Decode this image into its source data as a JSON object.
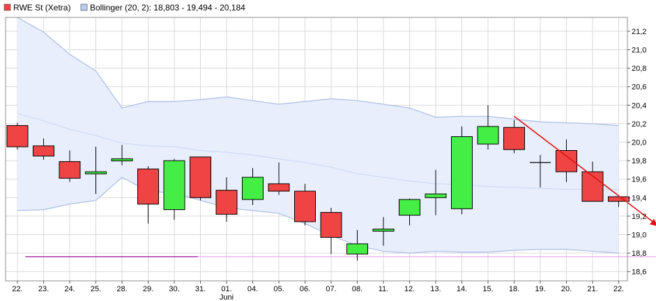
{
  "chart_data": {
    "type": "candlestick",
    "legend": [
      {
        "label": "RWE St (Xetra)",
        "swatch": "#ef4444"
      },
      {
        "label": "Bollinger (20, 2): 18,803 - 19,494 - 20,184",
        "swatch": "#b8cdf0"
      }
    ],
    "x_ticks": [
      "22.",
      "23.",
      "24.",
      "25.",
      "28.",
      "29.",
      "30.",
      "31.",
      "01.",
      "04.",
      "05.",
      "06.",
      "07.",
      "08.",
      "11.",
      "12.",
      "13.",
      "14.",
      "15.",
      "18.",
      "19.",
      "20.",
      "21.",
      "22."
    ],
    "month_label": {
      "text": "Juni",
      "at_index": 8
    },
    "y_ticks": [
      "18,6",
      "18,8",
      "19,0",
      "19,2",
      "19,4",
      "19,6",
      "19,8",
      "20,0",
      "20,2",
      "20,4",
      "20,6",
      "20,8",
      "21,0",
      "21,2"
    ],
    "y_tick_values": [
      18.6,
      18.8,
      19.0,
      19.2,
      19.4,
      19.6,
      19.8,
      20.0,
      20.2,
      20.4,
      20.6,
      20.8,
      21.0,
      21.2
    ],
    "ylim": [
      18.5,
      21.35
    ],
    "grid": true,
    "legend_placement": "top-left",
    "candles": [
      {
        "open": 20.18,
        "high": 20.21,
        "low": 19.92,
        "close": 19.95,
        "dir": "down"
      },
      {
        "open": 19.96,
        "high": 20.04,
        "low": 19.81,
        "close": 19.85,
        "dir": "down"
      },
      {
        "open": 19.79,
        "high": 19.91,
        "low": 19.57,
        "close": 19.61,
        "dir": "down"
      },
      {
        "open": 19.66,
        "high": 19.95,
        "low": 19.44,
        "close": 19.68,
        "dir": "up"
      },
      {
        "open": 19.8,
        "high": 19.97,
        "low": 19.75,
        "close": 19.82,
        "dir": "up"
      },
      {
        "open": 19.71,
        "high": 19.74,
        "low": 19.12,
        "close": 19.33,
        "dir": "down"
      },
      {
        "open": 19.27,
        "high": 19.82,
        "low": 19.16,
        "close": 19.8,
        "dir": "up"
      },
      {
        "open": 19.84,
        "high": 19.84,
        "low": 19.37,
        "close": 19.4,
        "dir": "down"
      },
      {
        "open": 19.48,
        "high": 19.62,
        "low": 19.14,
        "close": 19.22,
        "dir": "down"
      },
      {
        "open": 19.38,
        "high": 19.72,
        "low": 19.32,
        "close": 19.62,
        "dir": "up"
      },
      {
        "open": 19.55,
        "high": 19.78,
        "low": 19.43,
        "close": 19.47,
        "dir": "down"
      },
      {
        "open": 19.47,
        "high": 19.55,
        "low": 19.1,
        "close": 19.14,
        "dir": "down"
      },
      {
        "open": 19.24,
        "high": 19.29,
        "low": 18.79,
        "close": 18.97,
        "dir": "down"
      },
      {
        "open": 18.79,
        "high": 19.05,
        "low": 18.72,
        "close": 18.9,
        "dir": "up"
      },
      {
        "open": 19.04,
        "high": 19.19,
        "low": 18.88,
        "close": 19.06,
        "dir": "up"
      },
      {
        "open": 19.21,
        "high": 19.39,
        "low": 19.1,
        "close": 19.38,
        "dir": "up"
      },
      {
        "open": 19.4,
        "high": 19.7,
        "low": 19.21,
        "close": 19.44,
        "dir": "up"
      },
      {
        "open": 19.28,
        "high": 20.17,
        "low": 19.22,
        "close": 20.06,
        "dir": "up"
      },
      {
        "open": 19.98,
        "high": 20.4,
        "low": 19.92,
        "close": 20.17,
        "dir": "up"
      },
      {
        "open": 20.16,
        "high": 20.24,
        "low": 19.88,
        "close": 19.92,
        "dir": "down"
      },
      {
        "open": 19.78,
        "high": 19.86,
        "low": 19.51,
        "close": 19.78,
        "dir": "flat"
      },
      {
        "open": 19.91,
        "high": 20.03,
        "low": 19.57,
        "close": 19.68,
        "dir": "down"
      },
      {
        "open": 19.68,
        "high": 19.79,
        "low": 19.36,
        "close": 19.36,
        "dir": "down"
      },
      {
        "open": 19.41,
        "high": 19.41,
        "low": 19.3,
        "close": 19.36,
        "dir": "down"
      }
    ],
    "bollinger": {
      "upper": [
        21.35,
        21.19,
        20.95,
        20.77,
        20.37,
        20.44,
        20.44,
        20.46,
        20.49,
        20.45,
        20.41,
        20.44,
        20.47,
        20.45,
        20.41,
        20.37,
        20.27,
        20.28,
        20.28,
        20.25,
        20.22,
        20.21,
        20.2,
        20.18
      ],
      "middle": [
        20.31,
        20.23,
        20.14,
        20.07,
        19.99,
        19.96,
        19.95,
        19.91,
        19.89,
        19.86,
        19.82,
        19.78,
        19.73,
        19.66,
        19.62,
        19.58,
        19.55,
        19.54,
        19.52,
        19.51,
        19.5,
        19.49,
        19.49,
        19.49
      ],
      "lower": [
        19.26,
        19.27,
        19.33,
        19.37,
        19.62,
        19.47,
        19.45,
        19.37,
        19.29,
        19.26,
        19.23,
        19.12,
        18.99,
        18.88,
        18.82,
        18.8,
        18.82,
        18.81,
        18.81,
        18.83,
        18.84,
        18.84,
        18.82,
        18.8
      ]
    },
    "trend_arrow": {
      "from": {
        "index": 19,
        "value": 20.28
      },
      "to": {
        "index": 24.5,
        "value": 19.09
      },
      "color": "#e01010"
    },
    "support_line": {
      "value": 18.76,
      "from_index": 0.3,
      "to_index": 6.9,
      "color": "#990099"
    },
    "support_line_faint": {
      "value": 18.76,
      "from_index": 6.9,
      "to_index": 24.5,
      "color": "#f0a0f0"
    },
    "colors": {
      "up": "#44ee44",
      "down": "#ef4444",
      "band_fill": "#e8eefc",
      "band_line": "#a9bde6",
      "grid": "#d9d9d9"
    }
  }
}
